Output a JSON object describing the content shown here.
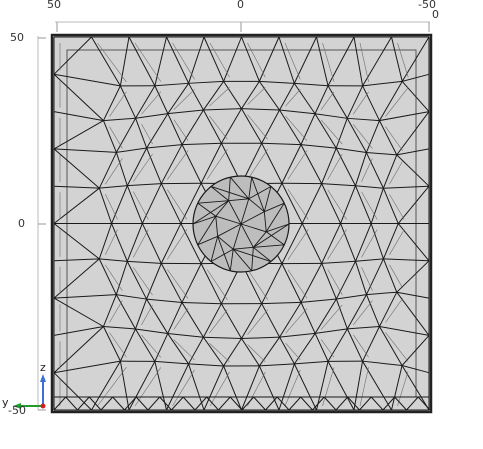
{
  "view": {
    "top_ticks": [
      "50",
      "0",
      "-50"
    ],
    "top_right_extra": "0",
    "left_ticks": [
      "50",
      "0",
      "-50"
    ],
    "axis_triad": {
      "z": "z",
      "y": "y"
    }
  },
  "colors": {
    "face_fill": "#d3d3d3",
    "mesh_line": "#1a1a1a",
    "mesh_line_light": "#6e6e6e",
    "frame": "#222222",
    "z_axis": "#3a6fd8",
    "y_axis": "#1e9c2e",
    "x_axis": "#d02020"
  },
  "icons": {
    "axis_triad": "coordinate-triad-icon"
  }
}
